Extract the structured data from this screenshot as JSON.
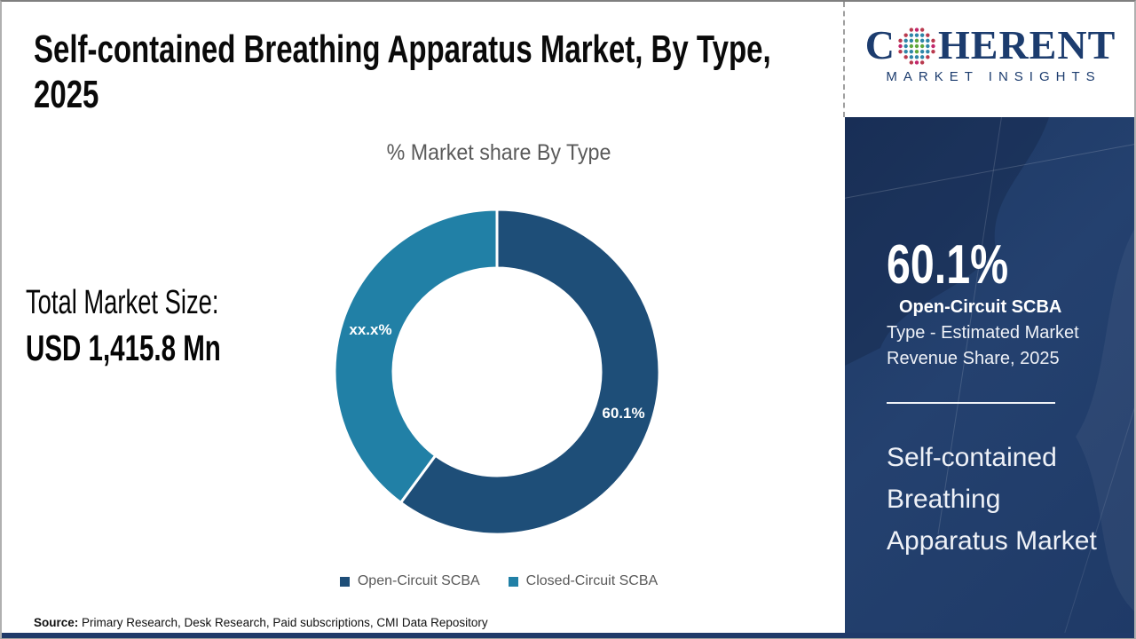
{
  "header": {
    "title": "Self-contained Breathing Apparatus Market, By Type, 2025"
  },
  "logo": {
    "letter_c": "C",
    "letters_rest": "HERENT",
    "tagline": "MARKET INSIGHTS",
    "brand_color": "#1c3c6e"
  },
  "left_panel": {
    "total_label": "Total Market Size:",
    "total_value": "USD 1,415.8 Mn",
    "source_label": "Source:",
    "source_text": " Primary Research, Desk Research, Paid subscriptions, CMI Data Repository"
  },
  "chart_data": {
    "type": "pie",
    "donut": true,
    "title": "% Market share By Type",
    "categories": [
      "Open-Circuit SCBA",
      "Closed-Circuit SCBA"
    ],
    "values": [
      60.1,
      39.9
    ],
    "data_labels": [
      "60.1%",
      "xx.x%"
    ],
    "colors": [
      "#1e4e78",
      "#2180a6"
    ],
    "start_angle_deg": 0,
    "outer_radius": 183,
    "inner_radius": 117,
    "legend_position": "bottom"
  },
  "sidebar": {
    "stat_value": "60.1%",
    "stat_desc_bold": "Open-Circuit SCBA",
    "stat_desc_rest": " Type - Estimated Market Revenue Share, 2025",
    "market_name": "Self-contained Breathing Apparatus Market",
    "bg_color": "#20396a"
  }
}
